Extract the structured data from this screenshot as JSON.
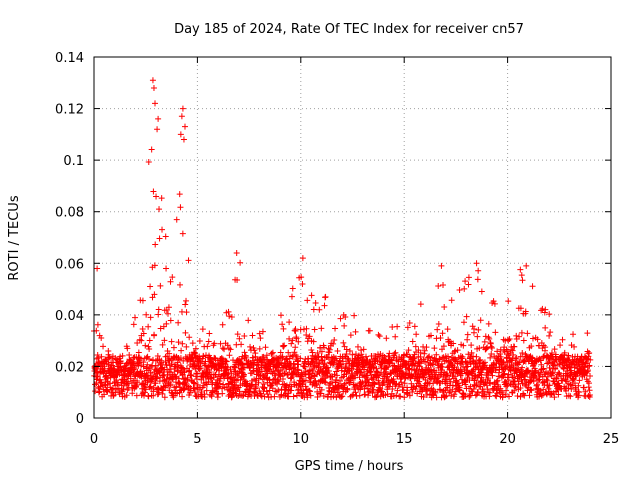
{
  "chart_data": {
    "type": "scatter",
    "title": "Day 185 of 2024, Rate Of TEC Index for receiver cn57",
    "xlabel": "GPS time / hours",
    "ylabel": "ROTI / TECUs",
    "xlim": [
      0,
      25
    ],
    "ylim": [
      0,
      0.14
    ],
    "xticks": [
      0,
      5,
      10,
      15,
      20,
      25
    ],
    "xtick_labels": [
      "0",
      "5",
      "10",
      "15",
      "20",
      "25"
    ],
    "yticks": [
      0,
      0.02,
      0.04,
      0.06,
      0.08,
      0.1,
      0.12,
      0.14
    ],
    "ytick_labels": [
      "0",
      "0.02",
      "0.04",
      "0.06",
      "0.08",
      "0.1",
      "0.12",
      "0.14"
    ],
    "grid": true,
    "marker": "plus",
    "color": "#ff0000",
    "series": [
      {
        "name": "ROTI",
        "data_range_hours": [
          0,
          24
        ],
        "baseline_roti": 0.016,
        "envelope_x": [
          0,
          0.5,
          1,
          1.5,
          2,
          2.5,
          2.8,
          3.2,
          3.6,
          4,
          4.2,
          4.6,
          5,
          6,
          7,
          8,
          9,
          10,
          11,
          12,
          13,
          14,
          15,
          16,
          16.7,
          17.5,
          18.5,
          19.5,
          20.5,
          21,
          21.5,
          22,
          23,
          24
        ],
        "envelope_y": [
          0.042,
          0.03,
          0.022,
          0.026,
          0.04,
          0.08,
          0.13,
          0.1,
          0.07,
          0.09,
          0.12,
          0.065,
          0.035,
          0.035,
          0.063,
          0.033,
          0.04,
          0.061,
          0.048,
          0.043,
          0.04,
          0.036,
          0.038,
          0.05,
          0.058,
          0.048,
          0.06,
          0.045,
          0.059,
          0.055,
          0.048,
          0.042,
          0.035,
          0.035
        ],
        "outliers": [
          {
            "x": 2.85,
            "y": 0.131
          },
          {
            "x": 2.9,
            "y": 0.128
          },
          {
            "x": 2.95,
            "y": 0.122
          },
          {
            "x": 3.1,
            "y": 0.116
          },
          {
            "x": 3.05,
            "y": 0.112
          },
          {
            "x": 4.3,
            "y": 0.12
          },
          {
            "x": 4.25,
            "y": 0.117
          },
          {
            "x": 4.2,
            "y": 0.11
          },
          {
            "x": 4.35,
            "y": 0.108
          },
          {
            "x": 4.4,
            "y": 0.113
          },
          {
            "x": 0.15,
            "y": 0.058
          },
          {
            "x": 6.9,
            "y": 0.064
          },
          {
            "x": 10.1,
            "y": 0.062
          },
          {
            "x": 16.8,
            "y": 0.059
          },
          {
            "x": 18.5,
            "y": 0.06
          },
          {
            "x": 20.9,
            "y": 0.059
          }
        ]
      }
    ]
  }
}
